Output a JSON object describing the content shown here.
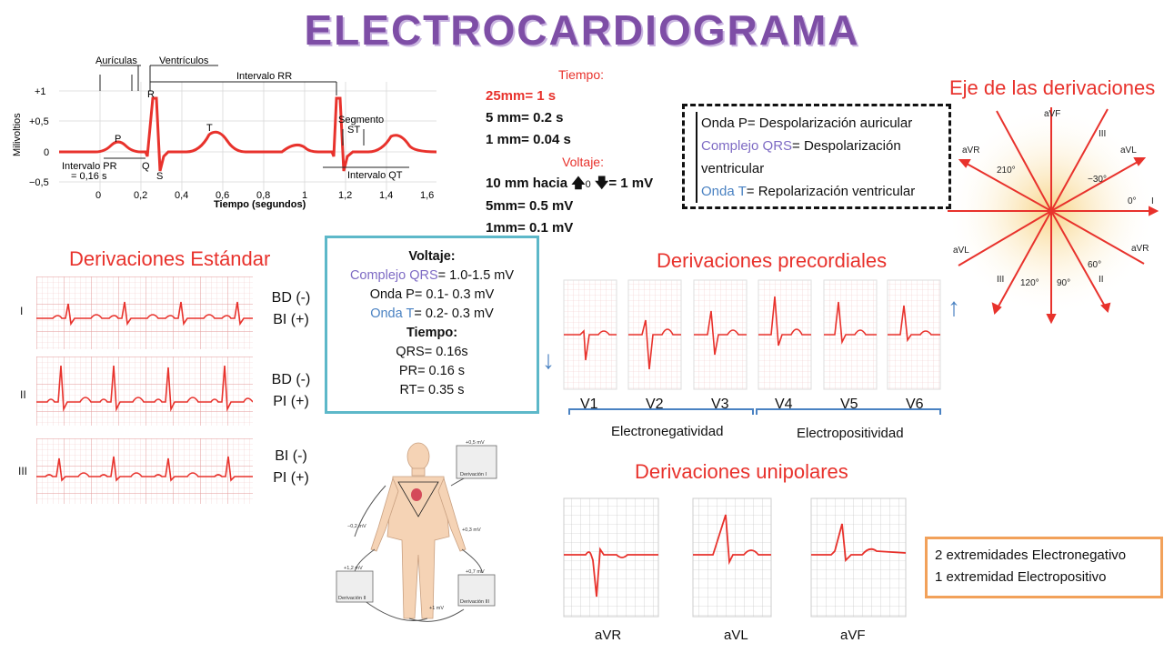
{
  "title": "ELECTROCARDIOGRAMA",
  "main_diagram": {
    "labels": {
      "auriculas": "Aurículas",
      "ventriculos": "Ventrículos",
      "intervalo_rr": "Intervalo RR",
      "segmento_st_1": "Segmento",
      "segmento_st_2": "ST",
      "intervalo_pr_1": "Intervalo PR",
      "intervalo_pr_2": "= 0,16 s",
      "intervalo_qt": "Intervalo QT",
      "p": "P",
      "q": "Q",
      "r": "R",
      "s": "S",
      "t": "T",
      "y_axis": "Milivoltios",
      "x_axis": "Tiempo (segundos)",
      "y_ticks": [
        "+1",
        "+0,5",
        "0",
        "−0,5"
      ],
      "x_ticks": [
        "0",
        "0,2",
        "0,4",
        "0,6",
        "0,8",
        "1",
        "1,2",
        "1,4",
        "1,6"
      ]
    }
  },
  "tiempo": {
    "header": "Tiempo:",
    "line1": "25mm= 1 s",
    "line2": "5 mm= 0.2 s",
    "line3": "1 mm= 0.04 s"
  },
  "voltaje": {
    "header": "Voltaje:",
    "line1_a": "10 mm hacia",
    "line1_b": "0",
    "line1_c": "= 1 mV",
    "line2": "5mm= 0.5 mV",
    "line3": "1mm= 0.1 mV"
  },
  "waves_box": {
    "onda_p": "Onda P= Despolarización auricular",
    "qrs_a": "Complejo QRS",
    "qrs_b": "= Despolarización ventricular",
    "onda_t_a": "Onda T",
    "onda_t_b": "= Repolarización ventricular"
  },
  "eje": {
    "header": "Eje de las derivaciones",
    "labels": {
      "avf_top": "aVF",
      "iii_top": "III",
      "avr_left": "aVR",
      "avl_right": "aVL",
      "d210": "210°",
      "dm30": "−30°",
      "d0": "0°",
      "i": "I",
      "avl_left": "aVL",
      "avr_right": "aVR",
      "d60": "60°",
      "ii": "II",
      "iii_bot": "III",
      "d120": "120°",
      "d90": "90°"
    }
  },
  "estandar": {
    "header": "Derivaciones Estándar",
    "leads": [
      {
        "name": "I",
        "l1": "BD (-)",
        "l2": "BI (+)"
      },
      {
        "name": "II",
        "l1": "BD (-)",
        "l2": "PI (+)"
      },
      {
        "name": "III",
        "l1": "BI (-)",
        "l2": "PI (+)"
      }
    ]
  },
  "volt_box": {
    "header": "Voltaje:",
    "qrs_a": "Complejo QRS",
    "qrs_b": "= 1.0-1.5 mV",
    "onda_p": "Onda P= 0.1- 0.3 mV",
    "onda_t_a": "Onda T",
    "onda_t_b": "= 0.2- 0.3 mV",
    "tiempo_header": "Tiempo:",
    "qrs_t": "QRS= 0.16s",
    "pr_t": "PR= 0.16 s",
    "rt_t": "RT= 0.35 s"
  },
  "precordiales": {
    "header": "Derivaciones precordiales",
    "leads": [
      "V1",
      "V2",
      "V3",
      "V4",
      "V5",
      "V6"
    ],
    "left_group": "Electronegatividad",
    "right_group": "Electropositividad"
  },
  "body_figure": {
    "m1": "+0,5 mV",
    "d1": "Derivación I",
    "m2": "−0,2 mV",
    "m3": "+0,3 mV",
    "m4": "+1,2 mV",
    "d2": "Derivación II",
    "m5": "+0,7 mV",
    "d3": "Derivación III",
    "m6": "+1 mV"
  },
  "unipolares": {
    "header": "Derivaciones unipolares",
    "leads": [
      "aVR",
      "aVL",
      "aVF"
    ]
  },
  "note": {
    "line1": "2 extremidades Electronegativo",
    "line2": "1 extremidad Electropositivo"
  },
  "colors": {
    "ecg_red": "#e8322c",
    "title_purple": "#7e4ea6",
    "accent_blue": "#4a82c2",
    "box_teal": "#5db8c9",
    "box_orange": "#f2a15a"
  }
}
